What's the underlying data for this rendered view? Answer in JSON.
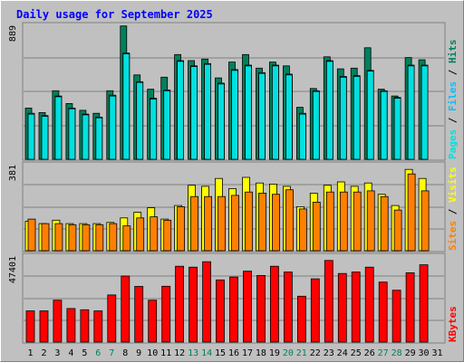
{
  "title": "Daily usage for September 2025",
  "colors": {
    "background": "#c0c0c0",
    "plot_bg": "#c0c0c0",
    "title": "#0000ff",
    "hits": "#00805c",
    "files": "#00c0ff",
    "pages": "#00e0e0",
    "visits": "#ffff00",
    "sites": "#ff8000",
    "kbytes": "#ff0000",
    "weekend_label": "#00805c",
    "weekday_label": "#000000"
  },
  "chart_data": [
    {
      "type": "bar",
      "panel": "hits-files-pages",
      "ymax_label": "889",
      "ylim": [
        0,
        889
      ],
      "legend": [
        "Pages",
        "Files",
        "Hits"
      ],
      "categories": [
        "1",
        "2",
        "3",
        "4",
        "5",
        "6",
        "7",
        "8",
        "9",
        "10",
        "11",
        "12",
        "13",
        "14",
        "15",
        "16",
        "17",
        "18",
        "19",
        "20",
        "21",
        "22",
        "23",
        "24",
        "25",
        "26",
        "27",
        "28",
        "29",
        "30",
        "31"
      ],
      "series": [
        {
          "name": "Hits",
          "values": [
            340,
            310,
            455,
            370,
            325,
            305,
            455,
            885,
            560,
            465,
            545,
            695,
            655,
            665,
            540,
            645,
            695,
            605,
            645,
            620,
            345,
            470,
            680,
            600,
            605,
            740,
            465,
            420,
            675,
            660,
            null
          ]
        },
        {
          "name": "Files",
          "values": [
            305,
            290,
            420,
            340,
            300,
            280,
            425,
            705,
            515,
            405,
            460,
            655,
            620,
            635,
            505,
            595,
            625,
            575,
            625,
            565,
            305,
            455,
            655,
            550,
            555,
            590,
            455,
            410,
            625,
            625,
            null
          ]
        },
        {
          "name": "Pages",
          "values": [
            300,
            285,
            415,
            335,
            295,
            275,
            420,
            700,
            510,
            400,
            455,
            650,
            615,
            630,
            500,
            590,
            620,
            570,
            620,
            560,
            300,
            450,
            650,
            545,
            550,
            585,
            450,
            405,
            620,
            620,
            null
          ]
        }
      ]
    },
    {
      "type": "bar",
      "panel": "visits-sites",
      "ymax_label": "381",
      "ylim": [
        0,
        381
      ],
      "legend": [
        "Sites",
        "Visits"
      ],
      "categories": [
        "1",
        "2",
        "3",
        "4",
        "5",
        "6",
        "7",
        "8",
        "9",
        "10",
        "11",
        "12",
        "13",
        "14",
        "15",
        "16",
        "17",
        "18",
        "19",
        "20",
        "21",
        "22",
        "23",
        "24",
        "25",
        "26",
        "27",
        "28",
        "29",
        "30",
        "31"
      ],
      "series": [
        {
          "name": "Visits",
          "values": [
            130,
            120,
            135,
            120,
            120,
            120,
            125,
            145,
            170,
            190,
            140,
            200,
            290,
            285,
            320,
            275,
            325,
            300,
            295,
            285,
            195,
            255,
            290,
            305,
            285,
            300,
            250,
            200,
            360,
            320,
            null
          ]
        },
        {
          "name": "Sites",
          "values": [
            140,
            120,
            120,
            115,
            115,
            115,
            120,
            110,
            145,
            150,
            135,
            195,
            240,
            240,
            240,
            245,
            260,
            255,
            250,
            270,
            185,
            215,
            260,
            260,
            260,
            265,
            240,
            180,
            340,
            265,
            null
          ]
        }
      ]
    },
    {
      "type": "bar",
      "panel": "kbytes",
      "ymax_label": "47401",
      "ylim": [
        0,
        47401
      ],
      "legend": [
        "KBytes"
      ],
      "categories": [
        "1",
        "2",
        "3",
        "4",
        "5",
        "6",
        "7",
        "8",
        "9",
        "10",
        "11",
        "12",
        "13",
        "14",
        "15",
        "16",
        "17",
        "18",
        "19",
        "20",
        "21",
        "22",
        "23",
        "24",
        "25",
        "26",
        "27",
        "28",
        "29",
        "30",
        "31"
      ],
      "series": [
        {
          "name": "KBytes",
          "values": [
            17200,
            17200,
            23100,
            18500,
            17800,
            17200,
            26000,
            36400,
            30700,
            23100,
            30800,
            41800,
            41300,
            44300,
            34300,
            35900,
            39100,
            36700,
            41800,
            38600,
            25300,
            34900,
            45000,
            37800,
            38600,
            41300,
            33100,
            28600,
            38200,
            42600,
            null
          ]
        }
      ]
    }
  ],
  "day_labels": [
    {
      "text": "1",
      "weekend": false
    },
    {
      "text": "2",
      "weekend": false
    },
    {
      "text": "3",
      "weekend": false
    },
    {
      "text": "4",
      "weekend": false
    },
    {
      "text": "5",
      "weekend": false
    },
    {
      "text": "6",
      "weekend": true
    },
    {
      "text": "7",
      "weekend": true
    },
    {
      "text": "8",
      "weekend": false
    },
    {
      "text": "9",
      "weekend": false
    },
    {
      "text": "10",
      "weekend": false
    },
    {
      "text": "11",
      "weekend": false
    },
    {
      "text": "12",
      "weekend": false
    },
    {
      "text": "13",
      "weekend": true
    },
    {
      "text": "14",
      "weekend": true
    },
    {
      "text": "15",
      "weekend": false
    },
    {
      "text": "16",
      "weekend": false
    },
    {
      "text": "17",
      "weekend": false
    },
    {
      "text": "18",
      "weekend": false
    },
    {
      "text": "19",
      "weekend": false
    },
    {
      "text": "20",
      "weekend": true
    },
    {
      "text": "21",
      "weekend": true
    },
    {
      "text": "22",
      "weekend": false
    },
    {
      "text": "23",
      "weekend": false
    },
    {
      "text": "24",
      "weekend": false
    },
    {
      "text": "25",
      "weekend": false
    },
    {
      "text": "26",
      "weekend": false
    },
    {
      "text": "27",
      "weekend": true
    },
    {
      "text": "28",
      "weekend": true
    },
    {
      "text": "29",
      "weekend": false
    },
    {
      "text": "30",
      "weekend": false
    },
    {
      "text": "31",
      "weekend": false
    }
  ]
}
